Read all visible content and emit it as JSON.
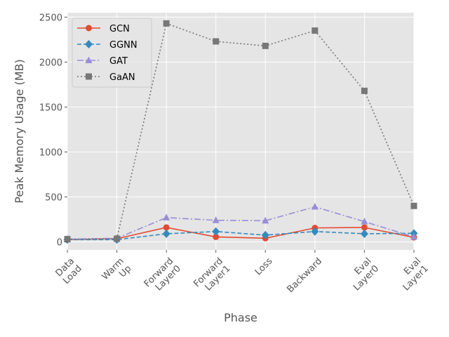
{
  "chart_data": {
    "type": "line",
    "title": "",
    "xlabel": "Phase",
    "ylabel": "Peak Memory Usage (MB)",
    "categories": [
      [
        "Data",
        "Load"
      ],
      [
        "Warm",
        "Up"
      ],
      [
        "Forward",
        "Layer0"
      ],
      [
        "Forward",
        "Layer1"
      ],
      [
        "Loss"
      ],
      [
        "Backward"
      ],
      [
        "Eval",
        "Layer0"
      ],
      [
        "Eval",
        "Layer1"
      ]
    ],
    "ylim": [
      -90,
      2550
    ],
    "yticks": [
      "0",
      "500",
      "1000",
      "1500",
      "2000",
      "2500"
    ],
    "ytick_values": [
      0,
      500,
      1000,
      1500,
      2000,
      2500
    ],
    "grid": true,
    "legend_position": "top-left",
    "series": [
      {
        "name": "GCN",
        "color": "#E24A33",
        "marker": "circle",
        "dash": "solid",
        "values": [
          25,
          35,
          160,
          55,
          40,
          155,
          160,
          50
        ]
      },
      {
        "name": "GGNN",
        "color": "#348ABD",
        "marker": "diamond",
        "dash": "dashed",
        "values": [
          25,
          25,
          90,
          115,
          75,
          115,
          90,
          95
        ]
      },
      {
        "name": "GAT",
        "color": "#988ED5",
        "marker": "triangle",
        "dash": "dashdot",
        "values": [
          30,
          40,
          270,
          240,
          235,
          390,
          225,
          55
        ]
      },
      {
        "name": "GaAN",
        "color": "#777777",
        "marker": "square",
        "dash": "dotted",
        "values": [
          30,
          35,
          2430,
          2230,
          2180,
          2350,
          1680,
          400
        ]
      }
    ]
  }
}
